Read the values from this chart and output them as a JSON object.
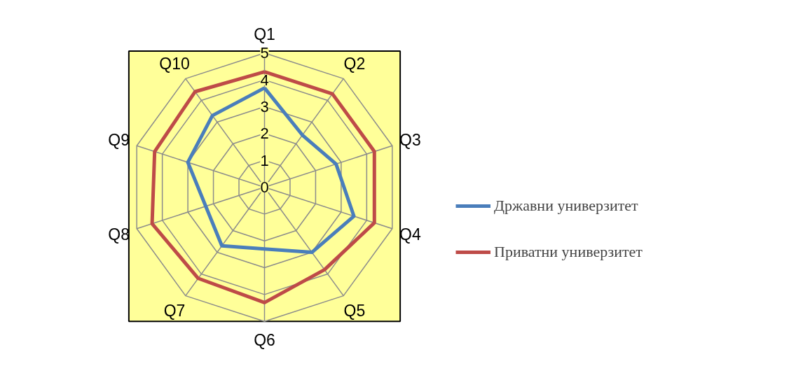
{
  "chart_data": {
    "type": "radar",
    "categories": [
      "Q1",
      "Q2",
      "Q3",
      "Q4",
      "Q5",
      "Q6",
      "Q7",
      "Q8",
      "Q9",
      "Q10"
    ],
    "series": [
      {
        "name": "Државни универзитет",
        "color": "#4a7ebb",
        "values": [
          3.7,
          2.4,
          2.8,
          3.5,
          3.0,
          2.3,
          2.7,
          2.3,
          3.0,
          3.3
        ]
      },
      {
        "name": "Приватни универзитет",
        "color": "#be4b48",
        "values": [
          4.3,
          4.3,
          4.3,
          4.3,
          3.8,
          4.3,
          4.2,
          4.4,
          4.3,
          4.4
        ]
      }
    ],
    "ylim": [
      0,
      5
    ],
    "yticks": [
      {
        "value": 0,
        "label": "0"
      },
      {
        "value": 1,
        "label": "1"
      },
      {
        "value": 2,
        "label": "2"
      },
      {
        "value": 3,
        "label": "3"
      },
      {
        "value": 4,
        "label": "4"
      },
      {
        "value": 5,
        "label": "5"
      }
    ],
    "grid": true,
    "legend": "right"
  }
}
